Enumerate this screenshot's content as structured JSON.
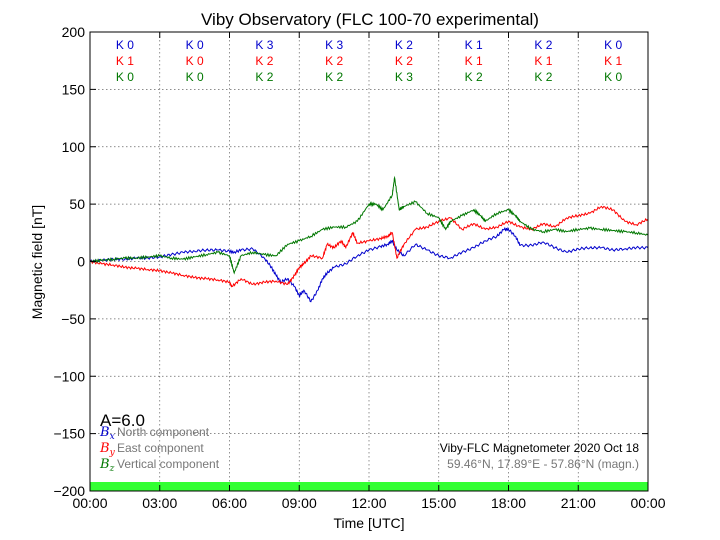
{
  "chart_data": {
    "type": "line",
    "title": "Viby Observatory (FLC 100-70 experimental)",
    "xlabel": "Time [UTC]",
    "ylabel": "Magnetic field [nT]",
    "xlim": [
      0,
      24
    ],
    "ylim": [
      -200,
      200
    ],
    "x_ticks": [
      0,
      3,
      6,
      9,
      12,
      15,
      18,
      21,
      24
    ],
    "x_tick_labels": [
      "00:00",
      "03:00",
      "06:00",
      "09:00",
      "12:00",
      "15:00",
      "18:00",
      "21:00",
      "00:00"
    ],
    "y_ticks": [
      -200,
      -150,
      -100,
      -50,
      0,
      50,
      100,
      150,
      200
    ],
    "y_tick_labels": [
      "−200",
      "−150",
      "−100",
      "−50",
      "0",
      "50",
      "100",
      "150",
      "200"
    ],
    "grid": true,
    "k_indices": {
      "north": [
        "K 0",
        "K 0",
        "K 3",
        "K 3",
        "K 2",
        "K 1",
        "K 2",
        "K 0"
      ],
      "east": [
        "K 1",
        "K 0",
        "K 2",
        "K 2",
        "K 2",
        "K 1",
        "K 1",
        "K 1"
      ],
      "vertical": [
        "K 0",
        "K 0",
        "K 2",
        "K 2",
        "K 3",
        "K 2",
        "K 2",
        "K 0"
      ]
    },
    "a_index": "A=6.0",
    "series": [
      {
        "name": "North component",
        "symbol": "B",
        "subscript": "x",
        "color": "#0000cc",
        "x": [
          0,
          0.5,
          1,
          1.5,
          2,
          2.5,
          3,
          3.5,
          4,
          4.5,
          5,
          5.5,
          6,
          6.2,
          6.5,
          7,
          7.5,
          7.8,
          8,
          8.2,
          8.5,
          8.8,
          9,
          9.2,
          9.5,
          9.8,
          10,
          10.2,
          10.5,
          11,
          11.5,
          12,
          12.5,
          12.8,
          13,
          13.2,
          13.5,
          14,
          14.5,
          15,
          15.5,
          16,
          16.5,
          17,
          17.5,
          17.8,
          18,
          18.3,
          18.5,
          19,
          19.5,
          20,
          20.5,
          21,
          21.5,
          22,
          22.5,
          23,
          23.5,
          24
        ],
        "values": [
          0,
          1,
          2,
          2,
          3,
          3,
          4,
          6,
          8,
          9,
          10,
          10,
          9,
          8,
          10,
          11,
          3,
          -5,
          -12,
          -18,
          -15,
          -22,
          -30,
          -25,
          -35,
          -25,
          -15,
          -10,
          -5,
          -2,
          5,
          10,
          13,
          15,
          18,
          10,
          5,
          15,
          10,
          5,
          3,
          8,
          12,
          18,
          22,
          28,
          28,
          22,
          14,
          14,
          17,
          12,
          8,
          11,
          12,
          12,
          10,
          11,
          12,
          12
        ]
      },
      {
        "name": "East component",
        "symbol": "B",
        "subscript": "y",
        "color": "#ff0000",
        "x": [
          0,
          0.5,
          1,
          1.5,
          2,
          2.5,
          3,
          3.5,
          4,
          4.5,
          5,
          5.5,
          6,
          6.1,
          6.5,
          7,
          7.5,
          8,
          8.5,
          8.8,
          9,
          9.2,
          9.5,
          10,
          10.2,
          10.5,
          10.8,
          11,
          11.3,
          11.5,
          12,
          12.5,
          12.8,
          13,
          13.2,
          13.5,
          14,
          14.5,
          15,
          15.5,
          16,
          16.5,
          17,
          17.5,
          18,
          18.5,
          19,
          19.5,
          20,
          20.5,
          21,
          21.5,
          22,
          22.5,
          23,
          23.5,
          24
        ],
        "values": [
          0,
          -2,
          -3,
          -5,
          -6,
          -7,
          -8,
          -10,
          -12,
          -14,
          -15,
          -16,
          -18,
          -22,
          -15,
          -20,
          -18,
          -17,
          -20,
          -12,
          -5,
          -2,
          5,
          3,
          15,
          12,
          18,
          12,
          25,
          16,
          18,
          20,
          22,
          25,
          3,
          15,
          28,
          30,
          35,
          38,
          28,
          33,
          28,
          30,
          35,
          30,
          28,
          33,
          30,
          38,
          40,
          42,
          48,
          45,
          35,
          32,
          37
        ]
      },
      {
        "name": "Vertical component",
        "symbol": "B",
        "subscript": "z",
        "color": "#007700",
        "x": [
          0,
          0.5,
          1,
          1.5,
          2,
          2.5,
          3,
          3.5,
          4,
          4.5,
          5,
          5.5,
          6,
          6.2,
          6.5,
          7,
          7.5,
          8,
          8.5,
          9,
          9.5,
          10,
          10.5,
          11,
          11.5,
          12,
          12.3,
          12.6,
          13,
          13.1,
          13.3,
          13.5,
          14,
          14.5,
          15,
          15.3,
          15.5,
          16,
          16.5,
          16.8,
          17,
          17.5,
          18,
          18.3,
          18.5,
          19,
          19.5,
          20,
          20.5,
          21,
          21.5,
          22,
          22.5,
          23,
          23.5,
          24
        ],
        "values": [
          0,
          1,
          2,
          3,
          3,
          4,
          5,
          3,
          2,
          4,
          6,
          8,
          5,
          -10,
          5,
          8,
          6,
          5,
          15,
          18,
          22,
          28,
          30,
          30,
          35,
          50,
          50,
          45,
          58,
          73,
          45,
          48,
          52,
          42,
          38,
          28,
          35,
          40,
          45,
          40,
          35,
          42,
          45,
          40,
          35,
          28,
          26,
          28,
          26,
          28,
          29,
          28,
          27,
          26,
          25,
          23
        ]
      }
    ],
    "info_line1": "Viby-FLC Magnetometer 2020 Oct 18",
    "info_line2": "59.46°N, 17.89°E - 57.86°N (magn.)",
    "band_color": "#33ff33",
    "colors": {
      "north": "#0000cc",
      "east": "#ff0000",
      "vertical": "#007700",
      "legend_text": "#777777"
    }
  }
}
